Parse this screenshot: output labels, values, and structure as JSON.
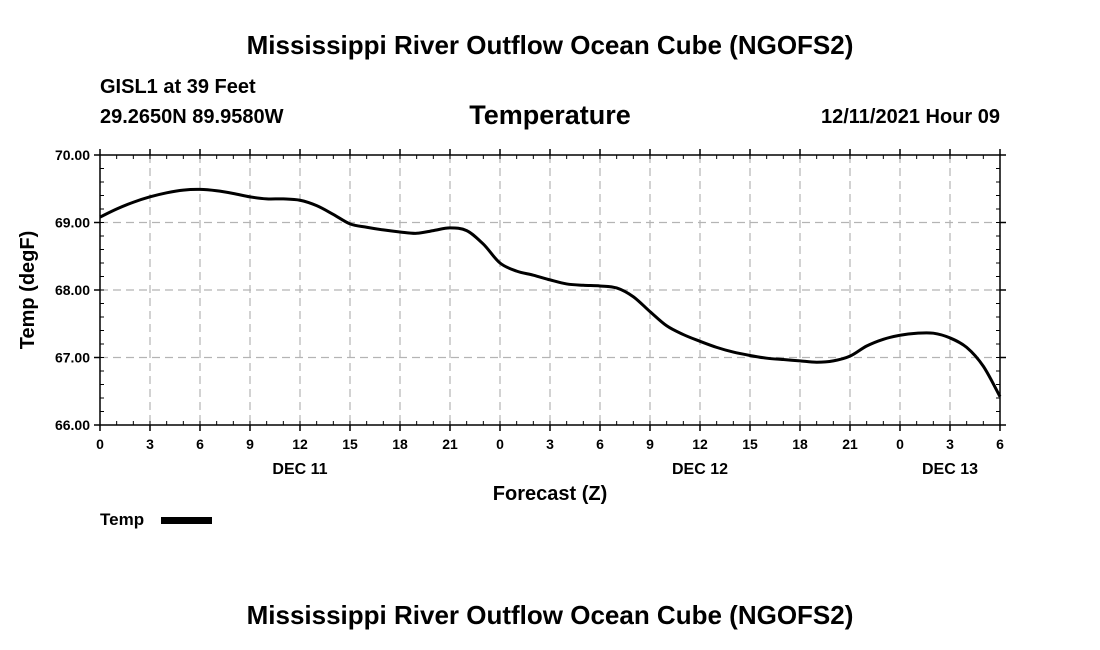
{
  "header": {
    "title": "Mississippi River Outflow Ocean Cube (NGOFS2)",
    "station": "GISL1 at 39 Feet",
    "coords": "29.2650N  89.9580W",
    "variable": "Temperature",
    "datetime": "12/11/2021 Hour 09"
  },
  "footer": {
    "title": "Mississippi River Outflow Ocean Cube (NGOFS2)"
  },
  "legend": {
    "label": "Temp"
  },
  "colors": {
    "line": "#000000",
    "grid": "#b4b4b4"
  },
  "chart_data": {
    "type": "line",
    "title": "Temperature",
    "xlabel": "Forecast (Z)",
    "ylabel": "Temp (degF)",
    "ylim": [
      66.0,
      70.0
    ],
    "xlim": [
      0,
      54
    ],
    "grid": true,
    "legend_position": "bottom-left",
    "y_ticks": [
      "66.00",
      "67.00",
      "68.00",
      "69.00",
      "70.00"
    ],
    "x_ticks": [
      "0",
      "3",
      "6",
      "9",
      "12",
      "15",
      "18",
      "21",
      "0",
      "3",
      "6",
      "9",
      "12",
      "15",
      "18",
      "21",
      "0",
      "3",
      "6"
    ],
    "date_labels": [
      {
        "label": "DEC 11",
        "hour": 12
      },
      {
        "label": "DEC 12",
        "hour": 36
      },
      {
        "label": "DEC 13",
        "hour": 51
      }
    ],
    "series": [
      {
        "name": "Temp",
        "x": [
          0,
          1,
          2,
          3,
          4,
          5,
          6,
          7,
          8,
          9,
          10,
          11,
          12,
          13,
          14,
          15,
          16,
          17,
          18,
          19,
          20,
          21,
          22,
          23,
          24,
          25,
          26,
          27,
          28,
          29,
          30,
          31,
          32,
          33,
          34,
          35,
          36,
          37,
          38,
          39,
          40,
          41,
          42,
          43,
          44,
          45,
          46,
          47,
          48,
          49,
          50,
          51,
          52,
          53,
          54
        ],
        "values": [
          69.08,
          69.2,
          69.3,
          69.38,
          69.44,
          69.48,
          69.49,
          69.47,
          69.43,
          69.38,
          69.35,
          69.35,
          69.33,
          69.25,
          69.12,
          68.98,
          68.93,
          68.89,
          68.86,
          68.84,
          68.88,
          68.92,
          68.88,
          68.68,
          68.4,
          68.28,
          68.22,
          68.15,
          68.09,
          68.07,
          68.06,
          68.03,
          67.9,
          67.68,
          67.47,
          67.34,
          67.24,
          67.15,
          67.08,
          67.03,
          66.99,
          66.97,
          66.95,
          66.93,
          66.95,
          67.02,
          67.17,
          67.27,
          67.33,
          67.36,
          67.36,
          67.29,
          67.15,
          66.87,
          66.42
        ]
      }
    ]
  }
}
